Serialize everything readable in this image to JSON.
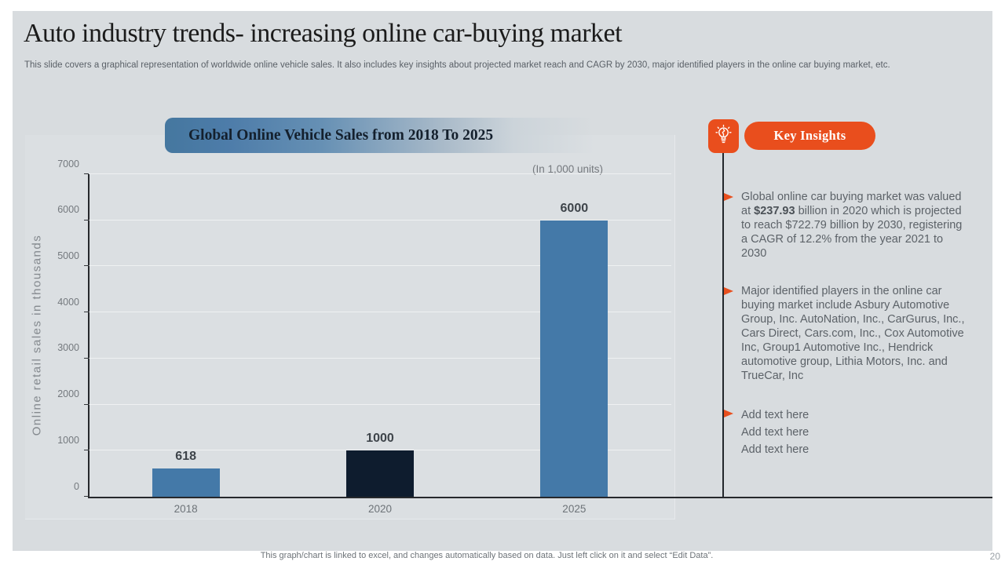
{
  "slide": {
    "title": "Auto industry trends- increasing online car-buying market",
    "subtitle": "This slide covers a graphical representation of worldwide online vehicle sales. It also includes key insights about projected market reach and CAGR  by 2030, major identified players in the online car buying market, etc.",
    "footer_note": "This graph/chart is linked to excel, and changes automatically based on data. Just left click on it and select “Edit Data”.",
    "page_number": "20"
  },
  "chart_data": {
    "type": "bar",
    "title": "Global Online Vehicle Sales from 2018 To 2025",
    "units_note": "(In 1,000 units)",
    "categories": [
      "2018",
      "2020",
      "2025"
    ],
    "values": [
      618,
      1000,
      6000
    ],
    "bar_colors": [
      "#4479a8",
      "#0e1c2e",
      "#4479a8"
    ],
    "ylabel": "Online retail sales in thousands",
    "xlabel": "",
    "ylim": [
      0,
      7000
    ],
    "ytick_step": 1000,
    "grid": true,
    "legend": "none"
  },
  "insights": {
    "header": "Key Insights",
    "icon": "lightbulb-icon",
    "accent_color": "#e94e1d",
    "bullet1": {
      "pre": "Global online car buying market was valued at ",
      "bold": "$237.93",
      "post": " billion in 2020 which is projected to reach $722.79 billion by 2030, registering a CAGR of 12.2% from the year 2021 to 2030"
    },
    "bullet2": "Major identified players in the online car buying market include Asbury Automotive Group, Inc. AutoNation, Inc., CarGurus, Inc., Cars Direct, Cars.com, Inc., Cox Automotive Inc, Group1 Automotive Inc., Hendrick automotive group, Lithia Motors, Inc. and TrueCar, Inc",
    "placeholders": [
      "Add text here",
      "Add text here",
      "Add text here"
    ]
  }
}
